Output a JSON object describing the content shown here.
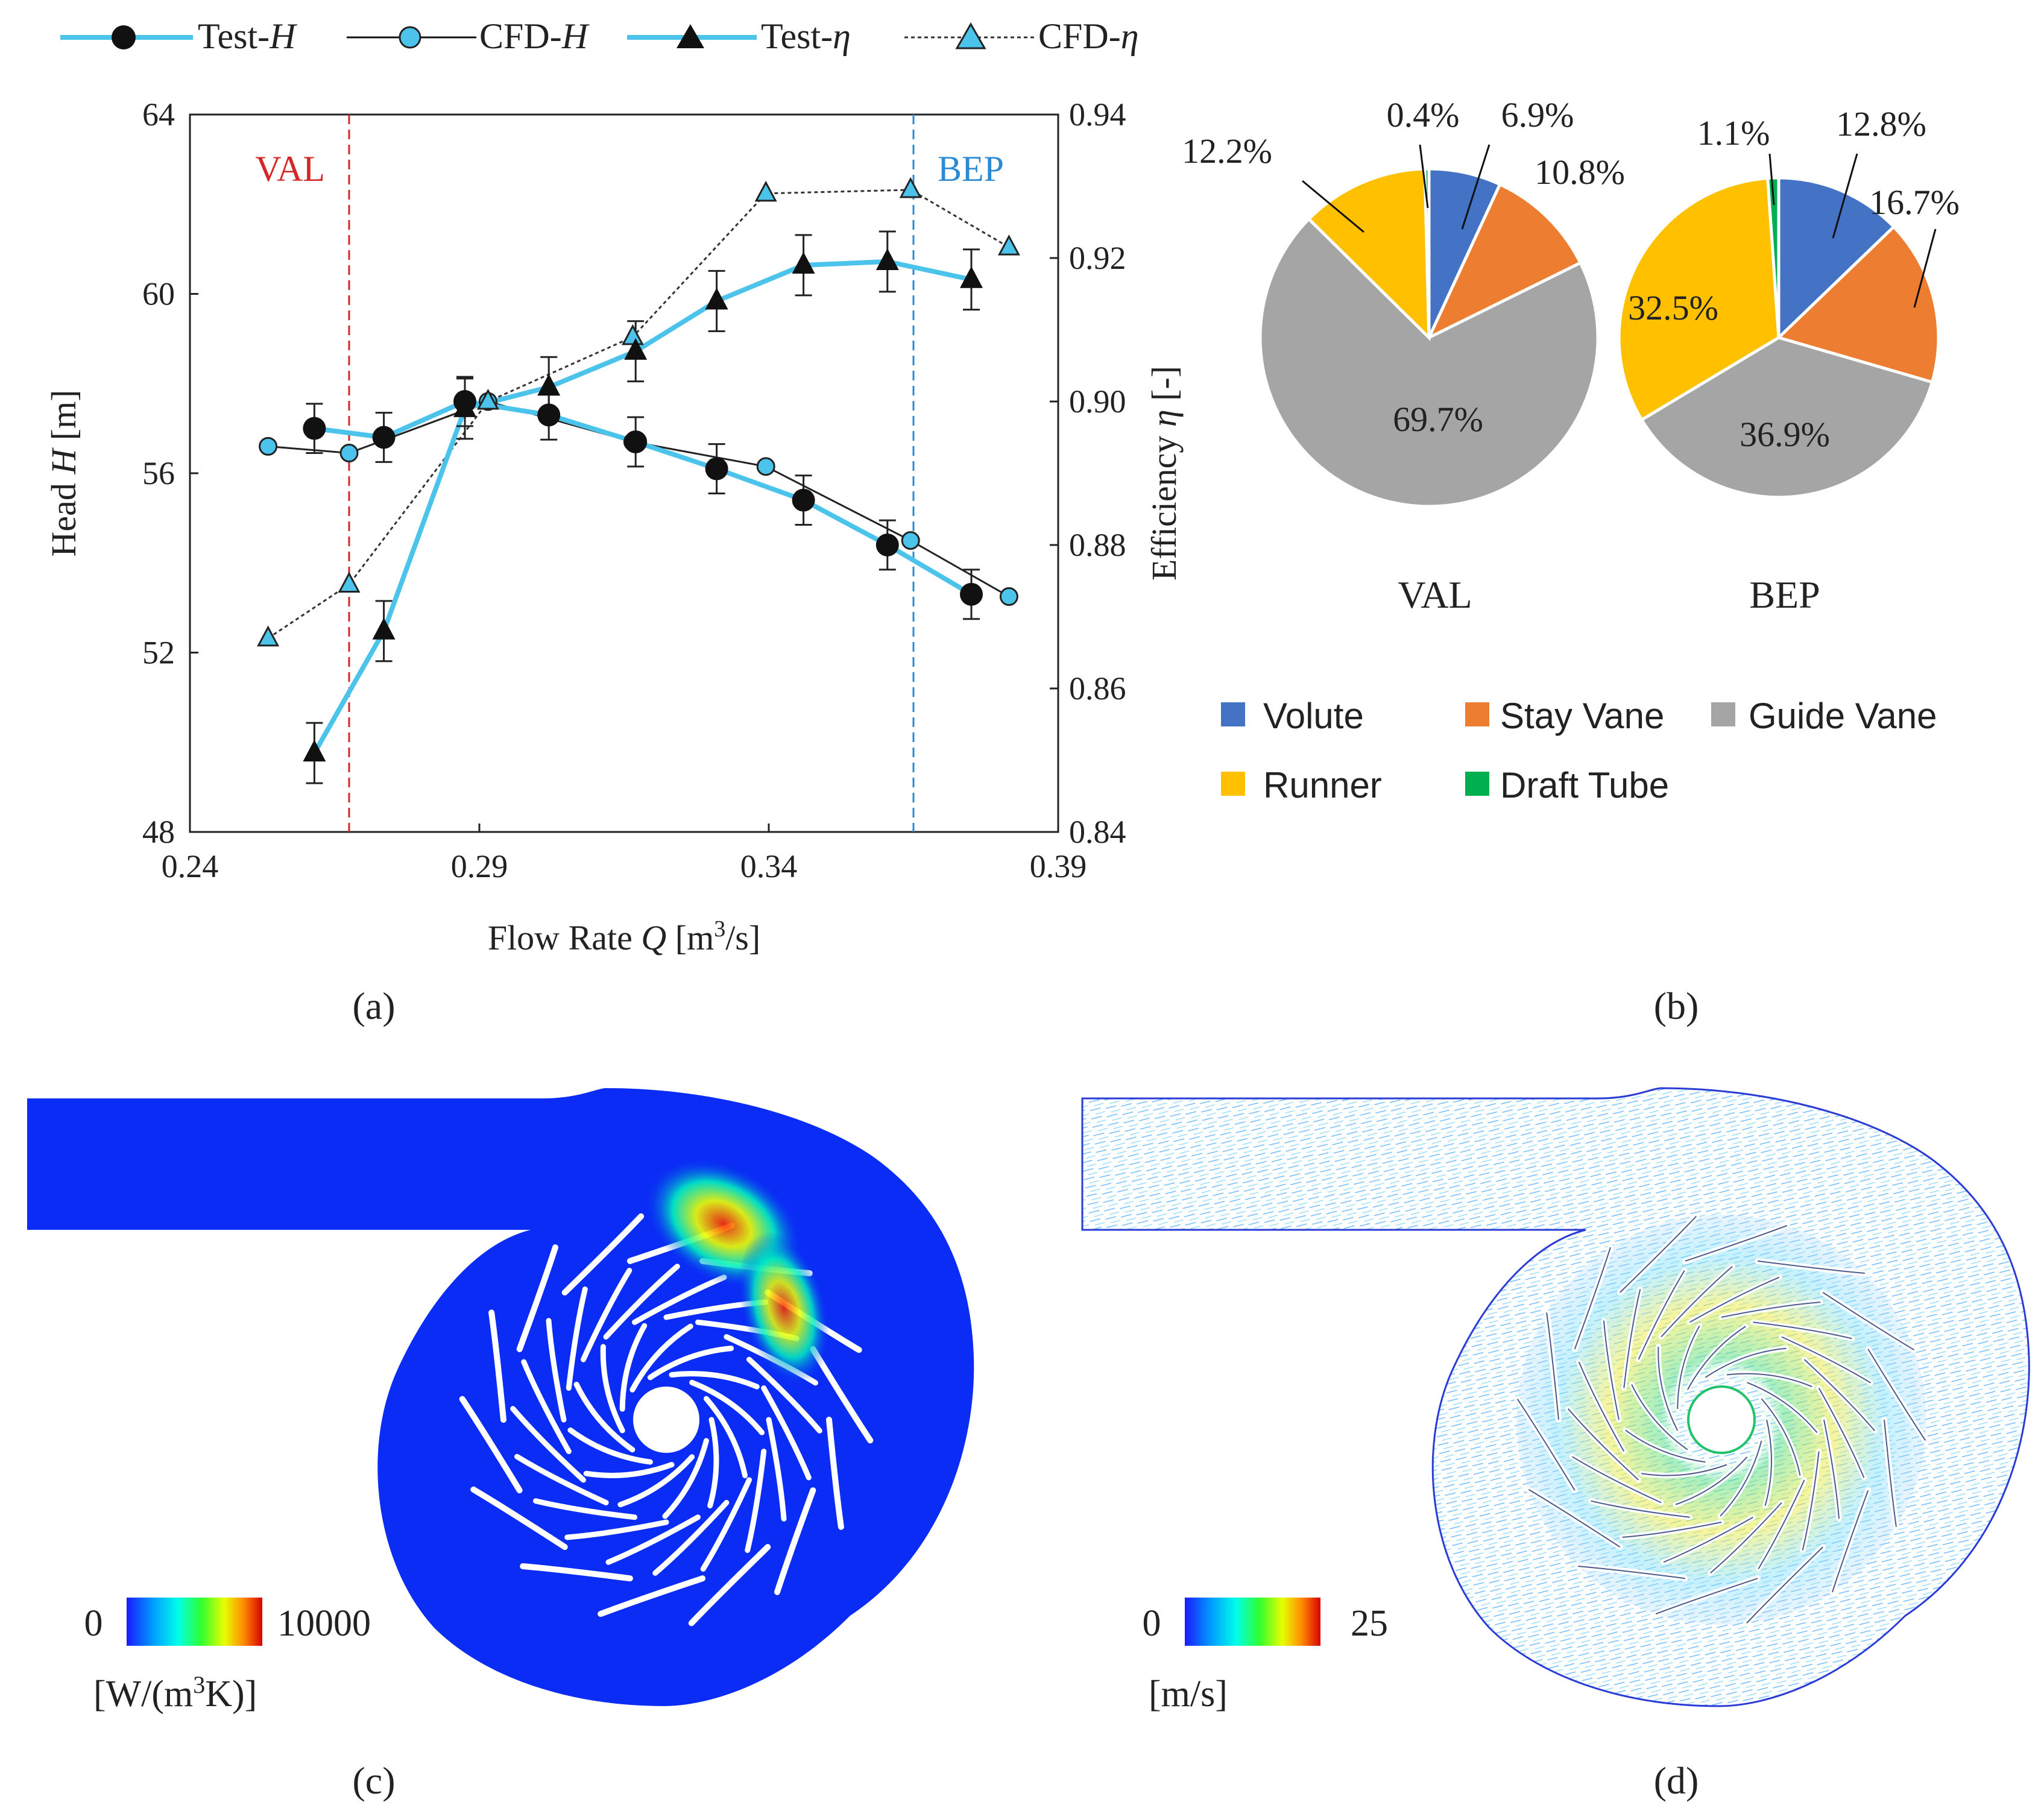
{
  "legend_top": {
    "items": [
      {
        "prefix": "Test-",
        "sym": "H"
      },
      {
        "prefix": "CFD-",
        "sym": "H"
      },
      {
        "prefix": "Test-",
        "sym": "η"
      },
      {
        "prefix": "CFD-",
        "sym": "η"
      }
    ]
  },
  "panel_labels": {
    "a": "(a)",
    "b": "(b)",
    "c": "(c)",
    "d": "(d)"
  },
  "colors": {
    "test_line": "#4cc3ea",
    "cfd_marker": "#4cc3ea",
    "val_line": "#d62728",
    "bep_line": "#2a8ad4",
    "volute": "#4472c4",
    "stay_vane": "#ed7d31",
    "guide_vane": "#a5a5a5",
    "runner": "#ffc000",
    "draft_tube": "#00b050",
    "contour_blue": "#0a2cf5"
  },
  "chart_data": [
    {
      "type": "line",
      "panel": "a",
      "xlabel_prefix": "Flow Rate ",
      "xlabel_sym": "Q",
      "xlabel_unit_a": " [m",
      "xlabel_unit_sup": "3",
      "xlabel_unit_b": "/s]",
      "ylabel_prefix": "Head ",
      "ylabel_sym": "H",
      "ylabel_unit": " [m]",
      "y2label_prefix": "Efficiency ",
      "y2label_sym": "η",
      "y2label_unit": " [-]",
      "xlim": [
        0.24,
        0.39
      ],
      "ylim": [
        48,
        64
      ],
      "y2lim": [
        0.84,
        0.94
      ],
      "xticks": [
        "0.24",
        "0.29",
        "0.34",
        "0.39"
      ],
      "yticks": [
        "48",
        "52",
        "56",
        "60",
        "64"
      ],
      "y2ticks": [
        "0.84",
        "0.86",
        "0.88",
        "0.90",
        "0.92",
        "0.94"
      ],
      "vlines": [
        {
          "label": "VAL",
          "x": 0.2675
        },
        {
          "label": "BEP",
          "x": 0.365
        }
      ],
      "series": [
        {
          "name": "Test-H",
          "axis": "left",
          "x": [
            0.2615,
            0.2735,
            0.2875,
            0.302,
            0.317,
            0.331,
            0.346,
            0.3605,
            0.375
          ],
          "y": [
            57.0,
            56.8,
            57.6,
            57.3,
            56.7,
            56.1,
            55.4,
            54.4,
            53.3
          ],
          "err": [
            0.55,
            0.55,
            0.55,
            0.55,
            0.55,
            0.55,
            0.55,
            0.55,
            0.55
          ]
        },
        {
          "name": "CFD-H",
          "axis": "left",
          "x": [
            0.2535,
            0.2675,
            0.2915,
            0.3165,
            0.3395,
            0.3645,
            0.3815
          ],
          "y": [
            56.6,
            56.45,
            57.6,
            56.7,
            56.15,
            54.5,
            53.25
          ]
        },
        {
          "name": "Test-η",
          "axis": "right",
          "x": [
            0.2615,
            0.2735,
            0.2875,
            0.302,
            0.317,
            0.331,
            0.346,
            0.3605,
            0.375
          ],
          "y": [
            0.851,
            0.868,
            0.899,
            0.902,
            0.907,
            0.914,
            0.919,
            0.9195,
            0.917
          ],
          "err": [
            0.0042,
            0.0042,
            0.0042,
            0.0042,
            0.0042,
            0.0042,
            0.0042,
            0.0042,
            0.0042
          ]
        },
        {
          "name": "CFD-η",
          "axis": "right",
          "x": [
            0.2535,
            0.2675,
            0.2915,
            0.3165,
            0.3395,
            0.3645,
            0.3815
          ],
          "y": [
            0.867,
            0.8745,
            0.9,
            0.909,
            0.929,
            0.9295,
            0.9215
          ]
        }
      ]
    },
    {
      "type": "pie",
      "panel": "b",
      "pies": [
        {
          "label": "VAL",
          "slices": [
            {
              "name": "Volute",
              "value": 6.9,
              "text": "6.9%"
            },
            {
              "name": "Stay Vane",
              "value": 10.8,
              "text": "10.8%"
            },
            {
              "name": "Guide Vane",
              "value": 69.7,
              "text": "69.7%"
            },
            {
              "name": "Runner",
              "value": 12.2,
              "text": "12.2%"
            },
            {
              "name": "Draft Tube",
              "value": 0.4,
              "text": "0.4%"
            }
          ]
        },
        {
          "label": "BEP",
          "slices": [
            {
              "name": "Volute",
              "value": 12.8,
              "text": "12.8%"
            },
            {
              "name": "Stay Vane",
              "value": 16.7,
              "text": "16.7%"
            },
            {
              "name": "Guide Vane",
              "value": 36.9,
              "text": "36.9%"
            },
            {
              "name": "Runner",
              "value": 32.5,
              "text": "32.5%"
            },
            {
              "name": "Draft Tube",
              "value": 1.1,
              "text": "1.1%"
            }
          ]
        }
      ],
      "legend": [
        "Volute",
        "Stay Vane",
        "Guide Vane",
        "Runner",
        "Draft Tube"
      ]
    },
    {
      "type": "heatmap",
      "panel": "c",
      "colorbar_min": "0",
      "colorbar_max": "10000",
      "unit_a": "[W/(m",
      "unit_sup": "3",
      "unit_b": "K)]"
    },
    {
      "type": "heatmap",
      "panel": "d",
      "colorbar_min": "0",
      "colorbar_max": "25",
      "unit": "[m/s]"
    }
  ]
}
